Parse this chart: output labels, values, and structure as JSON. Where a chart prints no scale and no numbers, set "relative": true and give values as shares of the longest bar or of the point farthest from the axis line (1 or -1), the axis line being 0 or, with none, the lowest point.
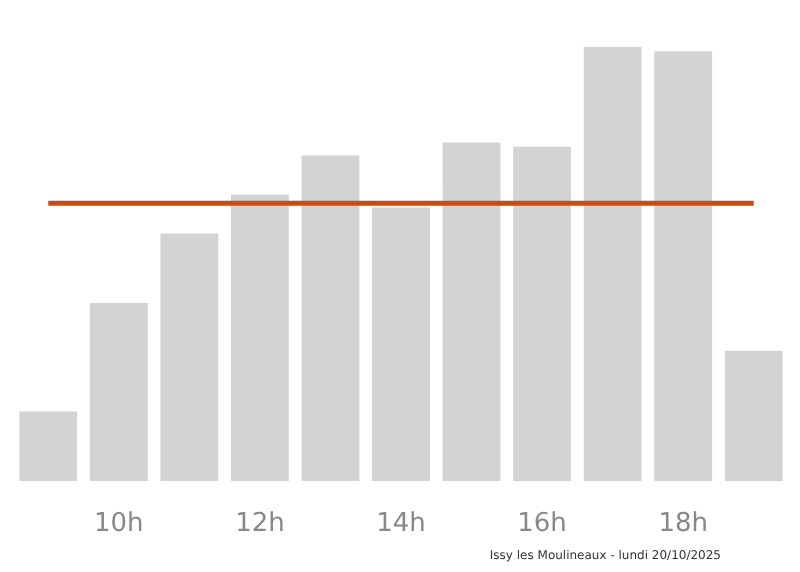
{
  "chart_data": {
    "type": "bar",
    "relative": true,
    "categories": [
      null,
      "10h",
      null,
      "12h",
      null,
      "14h",
      null,
      "16h",
      null,
      "18h",
      null
    ],
    "series": [
      {
        "color": "#d3d3d3",
        "values": [
          0.16,
          0.41,
          0.57,
          0.66,
          0.75,
          0.63,
          0.78,
          0.77,
          1,
          0.99,
          0.3
        ]
      }
    ],
    "ref_lines": [
      {
        "axis": "y",
        "value": 0.64,
        "color": "#cc4a14"
      }
    ],
    "grid": false,
    "annotations": [
      "Issy les Moulineaux - lundi 20/10/2025"
    ]
  }
}
